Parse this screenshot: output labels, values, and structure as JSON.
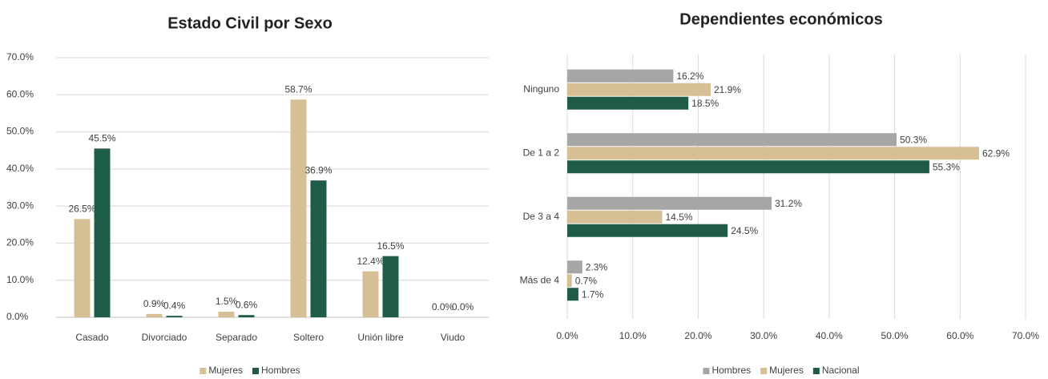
{
  "chart_data": [
    {
      "type": "bar",
      "orientation": "vertical",
      "title": "Estado Civil por Sexo",
      "categories": [
        "Casado",
        "Divorciado",
        "Separado",
        "Soltero",
        "Unión libre",
        "Viudo"
      ],
      "series": [
        {
          "name": "Mujeres",
          "color": "#d6bf94",
          "values": [
            26.5,
            0.9,
            1.5,
            58.7,
            12.4,
            0.0
          ],
          "value_labels": [
            "26.5%",
            "0.9%",
            "1.5%",
            "58.7%",
            "12.4%",
            "0.0%"
          ]
        },
        {
          "name": "Hombres",
          "color": "#1f5c45",
          "values": [
            45.5,
            0.4,
            0.6,
            36.9,
            16.5,
            0.0
          ],
          "value_labels": [
            "45.5%",
            "0.4%",
            "0.6%",
            "36.9%",
            "16.5%",
            "0.0%"
          ]
        }
      ],
      "ylim": [
        0,
        70
      ],
      "yticks": [
        {
          "value": 0,
          "label": "0.0%"
        },
        {
          "value": 10,
          "label": "10.0%"
        },
        {
          "value": 20,
          "label": "20.0%"
        },
        {
          "value": 30,
          "label": "30.0%"
        },
        {
          "value": 40,
          "label": "40.0%"
        },
        {
          "value": 50,
          "label": "50.0%"
        },
        {
          "value": 60,
          "label": "60.0%"
        },
        {
          "value": 70,
          "label": "70.0%"
        }
      ],
      "grid": true,
      "legend": "bottom"
    },
    {
      "type": "bar",
      "orientation": "horizontal",
      "title": "Dependientes económicos",
      "categories": [
        "Ninguno",
        "De 1 a 2",
        "De 3 a 4",
        "Más de 4"
      ],
      "series": [
        {
          "name": "Hombres",
          "color": "#a6a6a6",
          "values": [
            16.2,
            50.3,
            31.2,
            2.3
          ],
          "value_labels": [
            "16.2%",
            "50.3%",
            "31.2%",
            "2.3%"
          ]
        },
        {
          "name": "Mujeres",
          "color": "#d6bf94",
          "values": [
            21.9,
            62.9,
            14.5,
            0.7
          ],
          "value_labels": [
            "21.9%",
            "62.9%",
            "14.5%",
            "0.7%"
          ]
        },
        {
          "name": "Nacional",
          "color": "#1f5c45",
          "values": [
            18.5,
            55.3,
            24.5,
            1.7
          ],
          "value_labels": [
            "18.5%",
            "55.3%",
            "24.5%",
            "1.7%"
          ]
        }
      ],
      "xlim": [
        0,
        70
      ],
      "xticks": [
        {
          "value": 0,
          "label": "0.0%"
        },
        {
          "value": 10,
          "label": "10.0%"
        },
        {
          "value": 20,
          "label": "20.0%"
        },
        {
          "value": 30,
          "label": "30.0%"
        },
        {
          "value": 40,
          "label": "40.0%"
        },
        {
          "value": 50,
          "label": "50.0%"
        },
        {
          "value": 60,
          "label": "60.0%"
        },
        {
          "value": 70,
          "label": "70.0%"
        }
      ],
      "grid": true,
      "legend": "bottom"
    }
  ]
}
